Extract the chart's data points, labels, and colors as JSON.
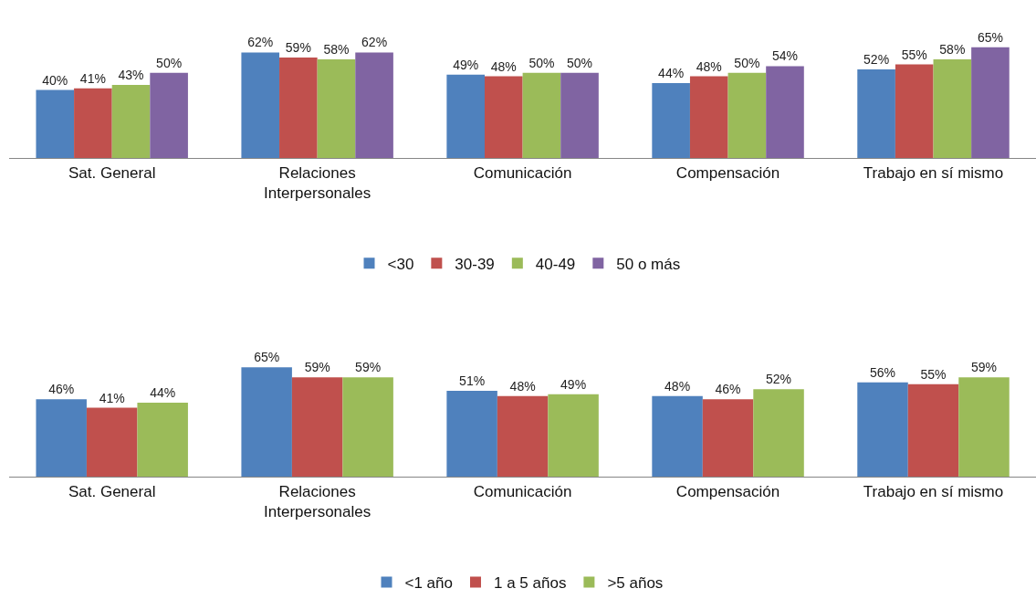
{
  "chart_data": [
    {
      "type": "bar",
      "categories": [
        "Sat. General",
        "Relaciones\nInterpersonales",
        "Comunicación",
        "Compensación",
        "Trabajo en sí mismo"
      ],
      "legend": "bottom",
      "series": [
        {
          "name": "<30",
          "color": "#4f81bd",
          "values": [
            40,
            62,
            49,
            44,
            52
          ],
          "value_labels": [
            "40%",
            "62%",
            "49%",
            "44%",
            "52%"
          ]
        },
        {
          "name": "30-39",
          "color": "#c0504d",
          "values": [
            41,
            59,
            48,
            48,
            55
          ],
          "value_labels": [
            "41%",
            "59%",
            "48%",
            "48%",
            "55%"
          ]
        },
        {
          "name": "40-49",
          "color": "#9bbb59",
          "values": [
            43,
            58,
            50,
            50,
            58
          ],
          "value_labels": [
            "43%",
            "58%",
            "50%",
            "50%",
            "58%"
          ]
        },
        {
          "name": "50 o más",
          "color": "#8064a2",
          "values": [
            50,
            62,
            50,
            54,
            65
          ],
          "value_labels": [
            "50%",
            "62%",
            "50%",
            "54%",
            "65%"
          ]
        }
      ]
    },
    {
      "type": "bar",
      "categories": [
        "Sat. General",
        "Relaciones\nInterpersonales",
        "Comunicación",
        "Compensación",
        "Trabajo en sí mismo"
      ],
      "legend": "bottom",
      "series": [
        {
          "name": "<1 año",
          "color": "#4f81bd",
          "values": [
            46,
            65,
            51,
            48,
            56
          ],
          "value_labels": [
            "46%",
            "65%",
            "51%",
            "48%",
            "56%"
          ]
        },
        {
          "name": "1 a 5 años",
          "color": "#c0504d",
          "values": [
            41,
            59,
            48,
            46,
            55
          ],
          "value_labels": [
            "41%",
            "59%",
            "48%",
            "46%",
            "55%"
          ]
        },
        {
          "name": ">5 años",
          "color": "#9bbb59",
          "values": [
            44,
            59,
            49,
            52,
            59
          ],
          "value_labels": [
            "44%",
            "59%",
            "49%",
            "52%",
            "59%"
          ]
        }
      ]
    }
  ]
}
